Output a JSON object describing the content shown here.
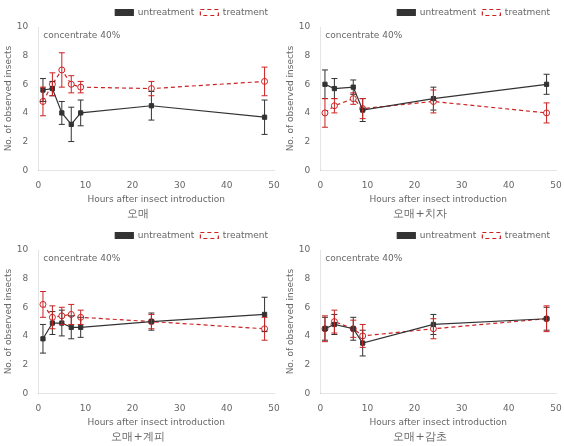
{
  "chart_data": [
    {
      "type": "line",
      "title": "오매",
      "xlabel": "Hours after insect introduction",
      "ylabel": "No. of observed insects",
      "annotation": "concentrate 40%",
      "xlim": [
        0,
        50
      ],
      "ylim": [
        0,
        10
      ],
      "xticks": [
        0,
        10,
        20,
        30,
        40,
        50
      ],
      "yticks": [
        0,
        2,
        4,
        6,
        8,
        10
      ],
      "grid": false,
      "legend": "upper right",
      "series": [
        {
          "name": "untreatment",
          "color": "#333333",
          "marker": "square",
          "line_style": "solid",
          "x": [
            1,
            3,
            5,
            7,
            9,
            24,
            48
          ],
          "values": [
            5.6,
            5.7,
            4.0,
            3.2,
            4.0,
            4.5,
            3.7
          ],
          "errors": [
            0.8,
            0.5,
            0.8,
            1.2,
            0.9,
            1.0,
            1.2
          ]
        },
        {
          "name": "treatment",
          "color": "#cc2222",
          "marker": "circle",
          "line_style": "dashed",
          "x": [
            1,
            3,
            5,
            7,
            9,
            24,
            48
          ],
          "values": [
            4.8,
            6.0,
            7.0,
            6.0,
            5.8,
            5.7,
            6.2
          ],
          "errors": [
            1.0,
            0.8,
            1.2,
            0.6,
            0.4,
            0.5,
            1.0
          ]
        }
      ]
    },
    {
      "type": "line",
      "title": "오매+치자",
      "xlabel": "Hours after insect introduction",
      "ylabel": "No. of observed insects",
      "annotation": "concentrate 40%",
      "xlim": [
        0,
        50
      ],
      "ylim": [
        0,
        10
      ],
      "xticks": [
        0,
        10,
        20,
        30,
        40,
        50
      ],
      "yticks": [
        0,
        2,
        4,
        6,
        8,
        10
      ],
      "grid": false,
      "legend": "upper right",
      "series": [
        {
          "name": "untreatment",
          "color": "#333333",
          "marker": "square",
          "line_style": "solid",
          "x": [
            1,
            3,
            7,
            9,
            24,
            48
          ],
          "values": [
            6.0,
            5.7,
            5.8,
            4.2,
            5.0,
            6.0
          ],
          "errors": [
            1.0,
            0.7,
            0.5,
            0.8,
            0.8,
            0.7
          ]
        },
        {
          "name": "treatment",
          "color": "#cc2222",
          "marker": "circle",
          "line_style": "dashed",
          "x": [
            1,
            3,
            7,
            9,
            24,
            48
          ],
          "values": [
            4.0,
            4.5,
            5.0,
            4.3,
            4.8,
            4.0
          ],
          "errors": [
            1.0,
            0.5,
            0.4,
            0.7,
            0.8,
            0.7
          ]
        }
      ]
    },
    {
      "type": "line",
      "title": "오매+계피",
      "xlabel": "Hours after insect introduction",
      "ylabel": "No. of observed insects",
      "annotation": "concentrate 40%",
      "xlim": [
        0,
        50
      ],
      "ylim": [
        0,
        10
      ],
      "xticks": [
        0,
        10,
        20,
        30,
        40,
        50
      ],
      "yticks": [
        0,
        2,
        4,
        6,
        8,
        10
      ],
      "grid": false,
      "legend": "upper right",
      "series": [
        {
          "name": "untreatment",
          "color": "#333333",
          "marker": "square",
          "line_style": "solid",
          "x": [
            1,
            3,
            5,
            7,
            9,
            24,
            48
          ],
          "values": [
            3.8,
            4.9,
            4.9,
            4.6,
            4.6,
            5.0,
            5.5
          ],
          "errors": [
            1.0,
            0.8,
            0.9,
            0.8,
            0.7,
            0.6,
            1.2
          ]
        },
        {
          "name": "treatment",
          "color": "#cc2222",
          "marker": "circle",
          "line_style": "dashed",
          "x": [
            1,
            3,
            5,
            7,
            9,
            24,
            48
          ],
          "values": [
            6.2,
            5.3,
            5.4,
            5.5,
            5.3,
            5.0,
            4.5
          ],
          "errors": [
            0.9,
            0.8,
            0.6,
            0.7,
            0.5,
            0.5,
            0.8
          ]
        }
      ]
    },
    {
      "type": "line",
      "title": "오매+감초",
      "xlabel": "Hours after insect introduction",
      "ylabel": "No. of observed insects",
      "annotation": "concentrate 40%",
      "xlim": [
        0,
        50
      ],
      "ylim": [
        0,
        10
      ],
      "xticks": [
        0,
        10,
        20,
        30,
        40,
        50
      ],
      "yticks": [
        0,
        2,
        4,
        6,
        8,
        10
      ],
      "grid": false,
      "legend": "upper right",
      "series": [
        {
          "name": "untreatment",
          "color": "#333333",
          "marker": "square",
          "line_style": "solid",
          "x": [
            1,
            3,
            7,
            9,
            24,
            48
          ],
          "values": [
            4.5,
            4.8,
            4.5,
            3.5,
            4.8,
            5.2
          ],
          "errors": [
            0.8,
            0.7,
            0.8,
            0.9,
            0.7,
            0.8
          ]
        },
        {
          "name": "treatment",
          "color": "#cc2222",
          "marker": "circle",
          "line_style": "dashed",
          "x": [
            1,
            3,
            7,
            9,
            24,
            48
          ],
          "values": [
            4.5,
            5.0,
            4.5,
            4.0,
            4.5,
            5.2
          ],
          "errors": [
            0.9,
            0.8,
            0.6,
            0.8,
            0.7,
            0.9
          ]
        }
      ]
    }
  ]
}
